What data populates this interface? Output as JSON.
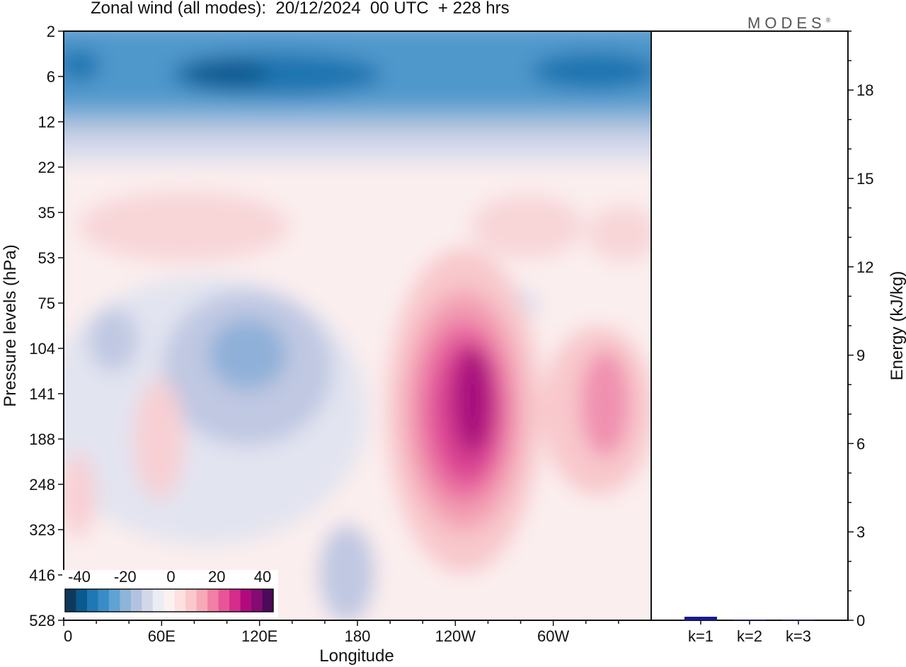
{
  "title": "Zonal wind (all modes):  20/12/2024  00 UTC  + 228 hrs",
  "logo": "MODES",
  "logo_mark": "®",
  "chart_data": [
    {
      "type": "heatmap",
      "title": "Zonal wind (all modes):  20/12/2024  00 UTC  + 228 hrs",
      "xlabel": "Longitude",
      "ylabel": "Pressure levels (hPa)",
      "x_ticks": [
        "0",
        "60E",
        "120E",
        "180",
        "120W",
        "60W"
      ],
      "y_ticks": [
        "2",
        "6",
        "12",
        "22",
        "35",
        "53",
        "75",
        "104",
        "141",
        "188",
        "248",
        "323",
        "416",
        "528"
      ],
      "colorbar": {
        "tick_labels": [
          "-40",
          "-20",
          "0",
          "20",
          "40"
        ],
        "colors": [
          "#0d3a5c",
          "#0b5a8f",
          "#1f77b4",
          "#3a8cc6",
          "#5fa3d3",
          "#8db4d9",
          "#b3c2e0",
          "#d2d8ea",
          "#ebecf4",
          "#fdf0f0",
          "#fde0e0",
          "#fbc8cc",
          "#f8a9b8",
          "#f27fa5",
          "#e85596",
          "#d62c8b",
          "#b00a7e",
          "#860a73",
          "#4b0a5a"
        ]
      },
      "features": [
        {
          "level": "6",
          "longitude": "0–180",
          "value": -35
        },
        {
          "level": "6",
          "longitude": "60W–0",
          "value": -35
        },
        {
          "level": "141",
          "longitude": "120W",
          "value": 40
        },
        {
          "level": "104",
          "longitude": "120E",
          "value": -22
        },
        {
          "level": "141",
          "longitude": "60W",
          "value": 15
        },
        {
          "level": "35",
          "longitude": "60E",
          "value": 5
        }
      ]
    },
    {
      "type": "bar",
      "ylabel": "Energy (kJ/kg)",
      "categories": [
        "k=1",
        "k=2",
        "k=3"
      ],
      "values": [
        0.12,
        0.02,
        0.01
      ],
      "ylim": [
        0,
        20
      ],
      "y_ticks": [
        "0",
        "3",
        "6",
        "9",
        "12",
        "15",
        "18"
      ],
      "bar_color": "#1a1a8c"
    }
  ]
}
